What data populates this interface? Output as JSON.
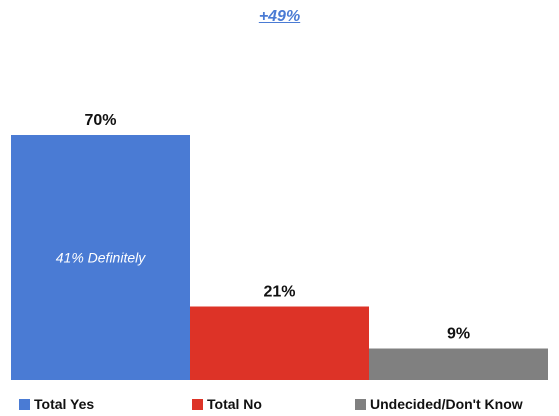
{
  "chart_data": {
    "type": "bar",
    "categories": [
      "Total Yes",
      "Total No",
      "Undecided/Don't Know"
    ],
    "values": [
      70,
      21,
      9
    ],
    "value_labels": [
      "70%",
      "21%",
      "9%"
    ],
    "inner_labels": [
      "41% Definitely",
      "",
      ""
    ],
    "colors": [
      "#4A7BD4",
      "#DD3327",
      "#808080"
    ],
    "annotation": "+49%",
    "annotation_color": "#4A7BD4",
    "ylim": [
      0,
      100
    ],
    "grid": false,
    "legend_position": "bottom"
  }
}
